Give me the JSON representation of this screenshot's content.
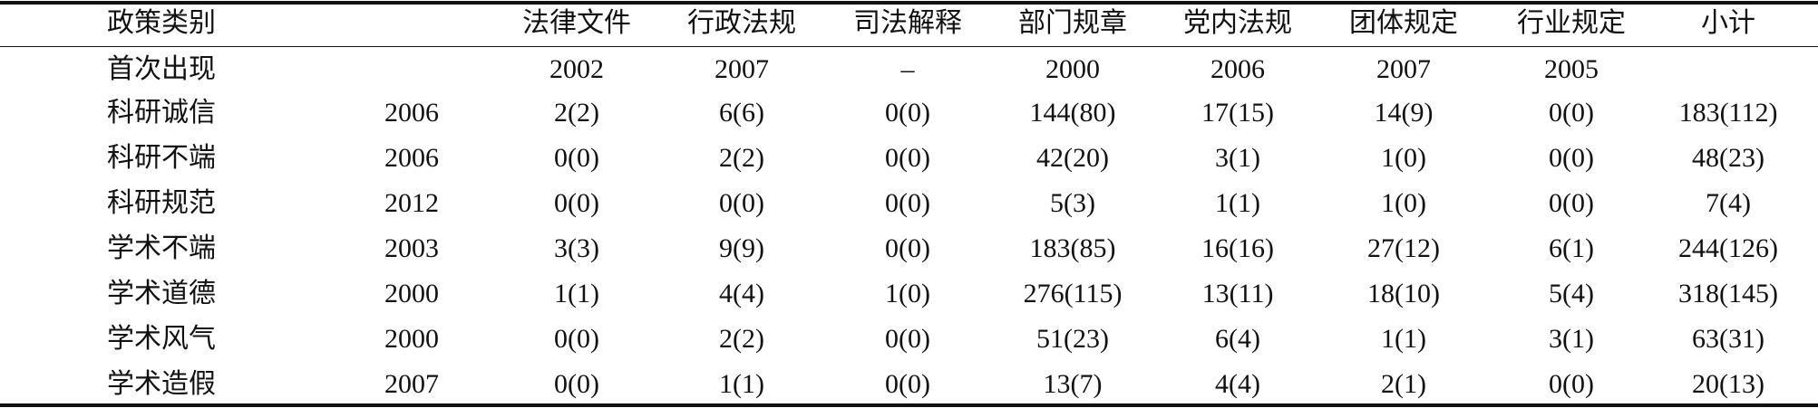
{
  "header": {
    "label": "政策类别",
    "columns": [
      "法律文件",
      "行政法规",
      "司法解释",
      "部门规章",
      "党内法规",
      "团体规定",
      "行业规定",
      "小计"
    ]
  },
  "first_row": {
    "label": "首次出现",
    "cells": [
      "2002",
      "2007",
      "–",
      "2000",
      "2006",
      "2007",
      "2005"
    ]
  },
  "rows": [
    {
      "label": "科研诚信",
      "year": "2006",
      "cells": [
        "2(2)",
        "6(6)",
        "0(0)",
        "144(80)",
        "17(15)",
        "14(9)",
        "0(0)",
        "183(112)"
      ]
    },
    {
      "label": "科研不端",
      "year": "2006",
      "cells": [
        "0(0)",
        "2(2)",
        "0(0)",
        "42(20)",
        "3(1)",
        "1(0)",
        "0(0)",
        "48(23)"
      ]
    },
    {
      "label": "科研规范",
      "year": "2012",
      "cells": [
        "0(0)",
        "0(0)",
        "0(0)",
        "5(3)",
        "1(1)",
        "1(0)",
        "0(0)",
        "7(4)"
      ]
    },
    {
      "label": "学术不端",
      "year": "2003",
      "cells": [
        "3(3)",
        "9(9)",
        "0(0)",
        "183(85)",
        "16(16)",
        "27(12)",
        "6(1)",
        "244(126)"
      ]
    },
    {
      "label": "学术道德",
      "year": "2000",
      "cells": [
        "1(1)",
        "4(4)",
        "1(0)",
        "276(115)",
        "13(11)",
        "18(10)",
        "5(4)",
        "318(145)"
      ]
    },
    {
      "label": "学术风气",
      "year": "2000",
      "cells": [
        "0(0)",
        "2(2)",
        "0(0)",
        "51(23)",
        "6(4)",
        "1(1)",
        "3(1)",
        "63(31)"
      ]
    },
    {
      "label": "学术造假",
      "year": "2007",
      "cells": [
        "0(0)",
        "1(1)",
        "0(0)",
        "13(7)",
        "4(4)",
        "2(1)",
        "0(0)",
        "20(13)"
      ]
    }
  ]
}
